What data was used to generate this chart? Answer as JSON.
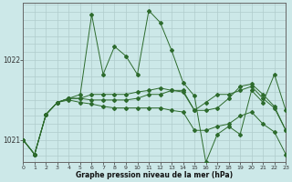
{
  "title": "Graphe pression niveau de la mer (hPa)",
  "bg_color": "#cce8e8",
  "grid_color": "#b0cccc",
  "line_color": "#2d6b2d",
  "xlim": [
    0,
    23
  ],
  "ylim": [
    1020.72,
    1022.72
  ],
  "yticks": [
    1021,
    1022
  ],
  "xtick_labels": [
    "0",
    "1",
    "2",
    "3",
    "4",
    "5",
    "6",
    "7",
    "8",
    "9",
    "10",
    "11",
    "12",
    "13",
    "14",
    "15",
    "16",
    "17",
    "18",
    "19",
    "20",
    "21",
    "22",
    "23"
  ],
  "xticks": [
    0,
    1,
    2,
    3,
    4,
    5,
    6,
    7,
    8,
    9,
    10,
    11,
    12,
    13,
    14,
    15,
    16,
    17,
    18,
    19,
    20,
    21,
    22,
    23
  ],
  "series": [
    [
      1021.0,
      1020.82,
      1021.32,
      1021.47,
      1021.52,
      1021.57,
      1022.57,
      1021.82,
      1022.17,
      1022.05,
      1021.82,
      1022.62,
      1022.47,
      1022.12,
      1021.72,
      1021.55,
      1020.72,
      1021.07,
      1021.17,
      1021.07,
      1021.62,
      1021.47,
      1021.82,
      1021.37
    ],
    [
      1021.0,
      1020.82,
      1021.32,
      1021.47,
      1021.52,
      1021.52,
      1021.57,
      1021.57,
      1021.57,
      1021.57,
      1021.6,
      1021.62,
      1021.65,
      1021.62,
      1021.62,
      1021.37,
      1021.37,
      1021.4,
      1021.52,
      1021.67,
      1021.7,
      1021.57,
      1021.42,
      1021.12
    ],
    [
      1021.0,
      1020.82,
      1021.32,
      1021.47,
      1021.52,
      1021.52,
      1021.5,
      1021.5,
      1021.5,
      1021.5,
      1021.52,
      1021.57,
      1021.57,
      1021.62,
      1021.6,
      1021.37,
      1021.47,
      1021.57,
      1021.57,
      1021.62,
      1021.67,
      1021.52,
      1021.4,
      1021.12
    ],
    [
      1021.0,
      1020.82,
      1021.32,
      1021.47,
      1021.5,
      1021.47,
      1021.45,
      1021.42,
      1021.4,
      1021.4,
      1021.4,
      1021.4,
      1021.4,
      1021.37,
      1021.35,
      1021.12,
      1021.12,
      1021.17,
      1021.2,
      1021.3,
      1021.35,
      1021.2,
      1021.1,
      1020.82
    ]
  ]
}
